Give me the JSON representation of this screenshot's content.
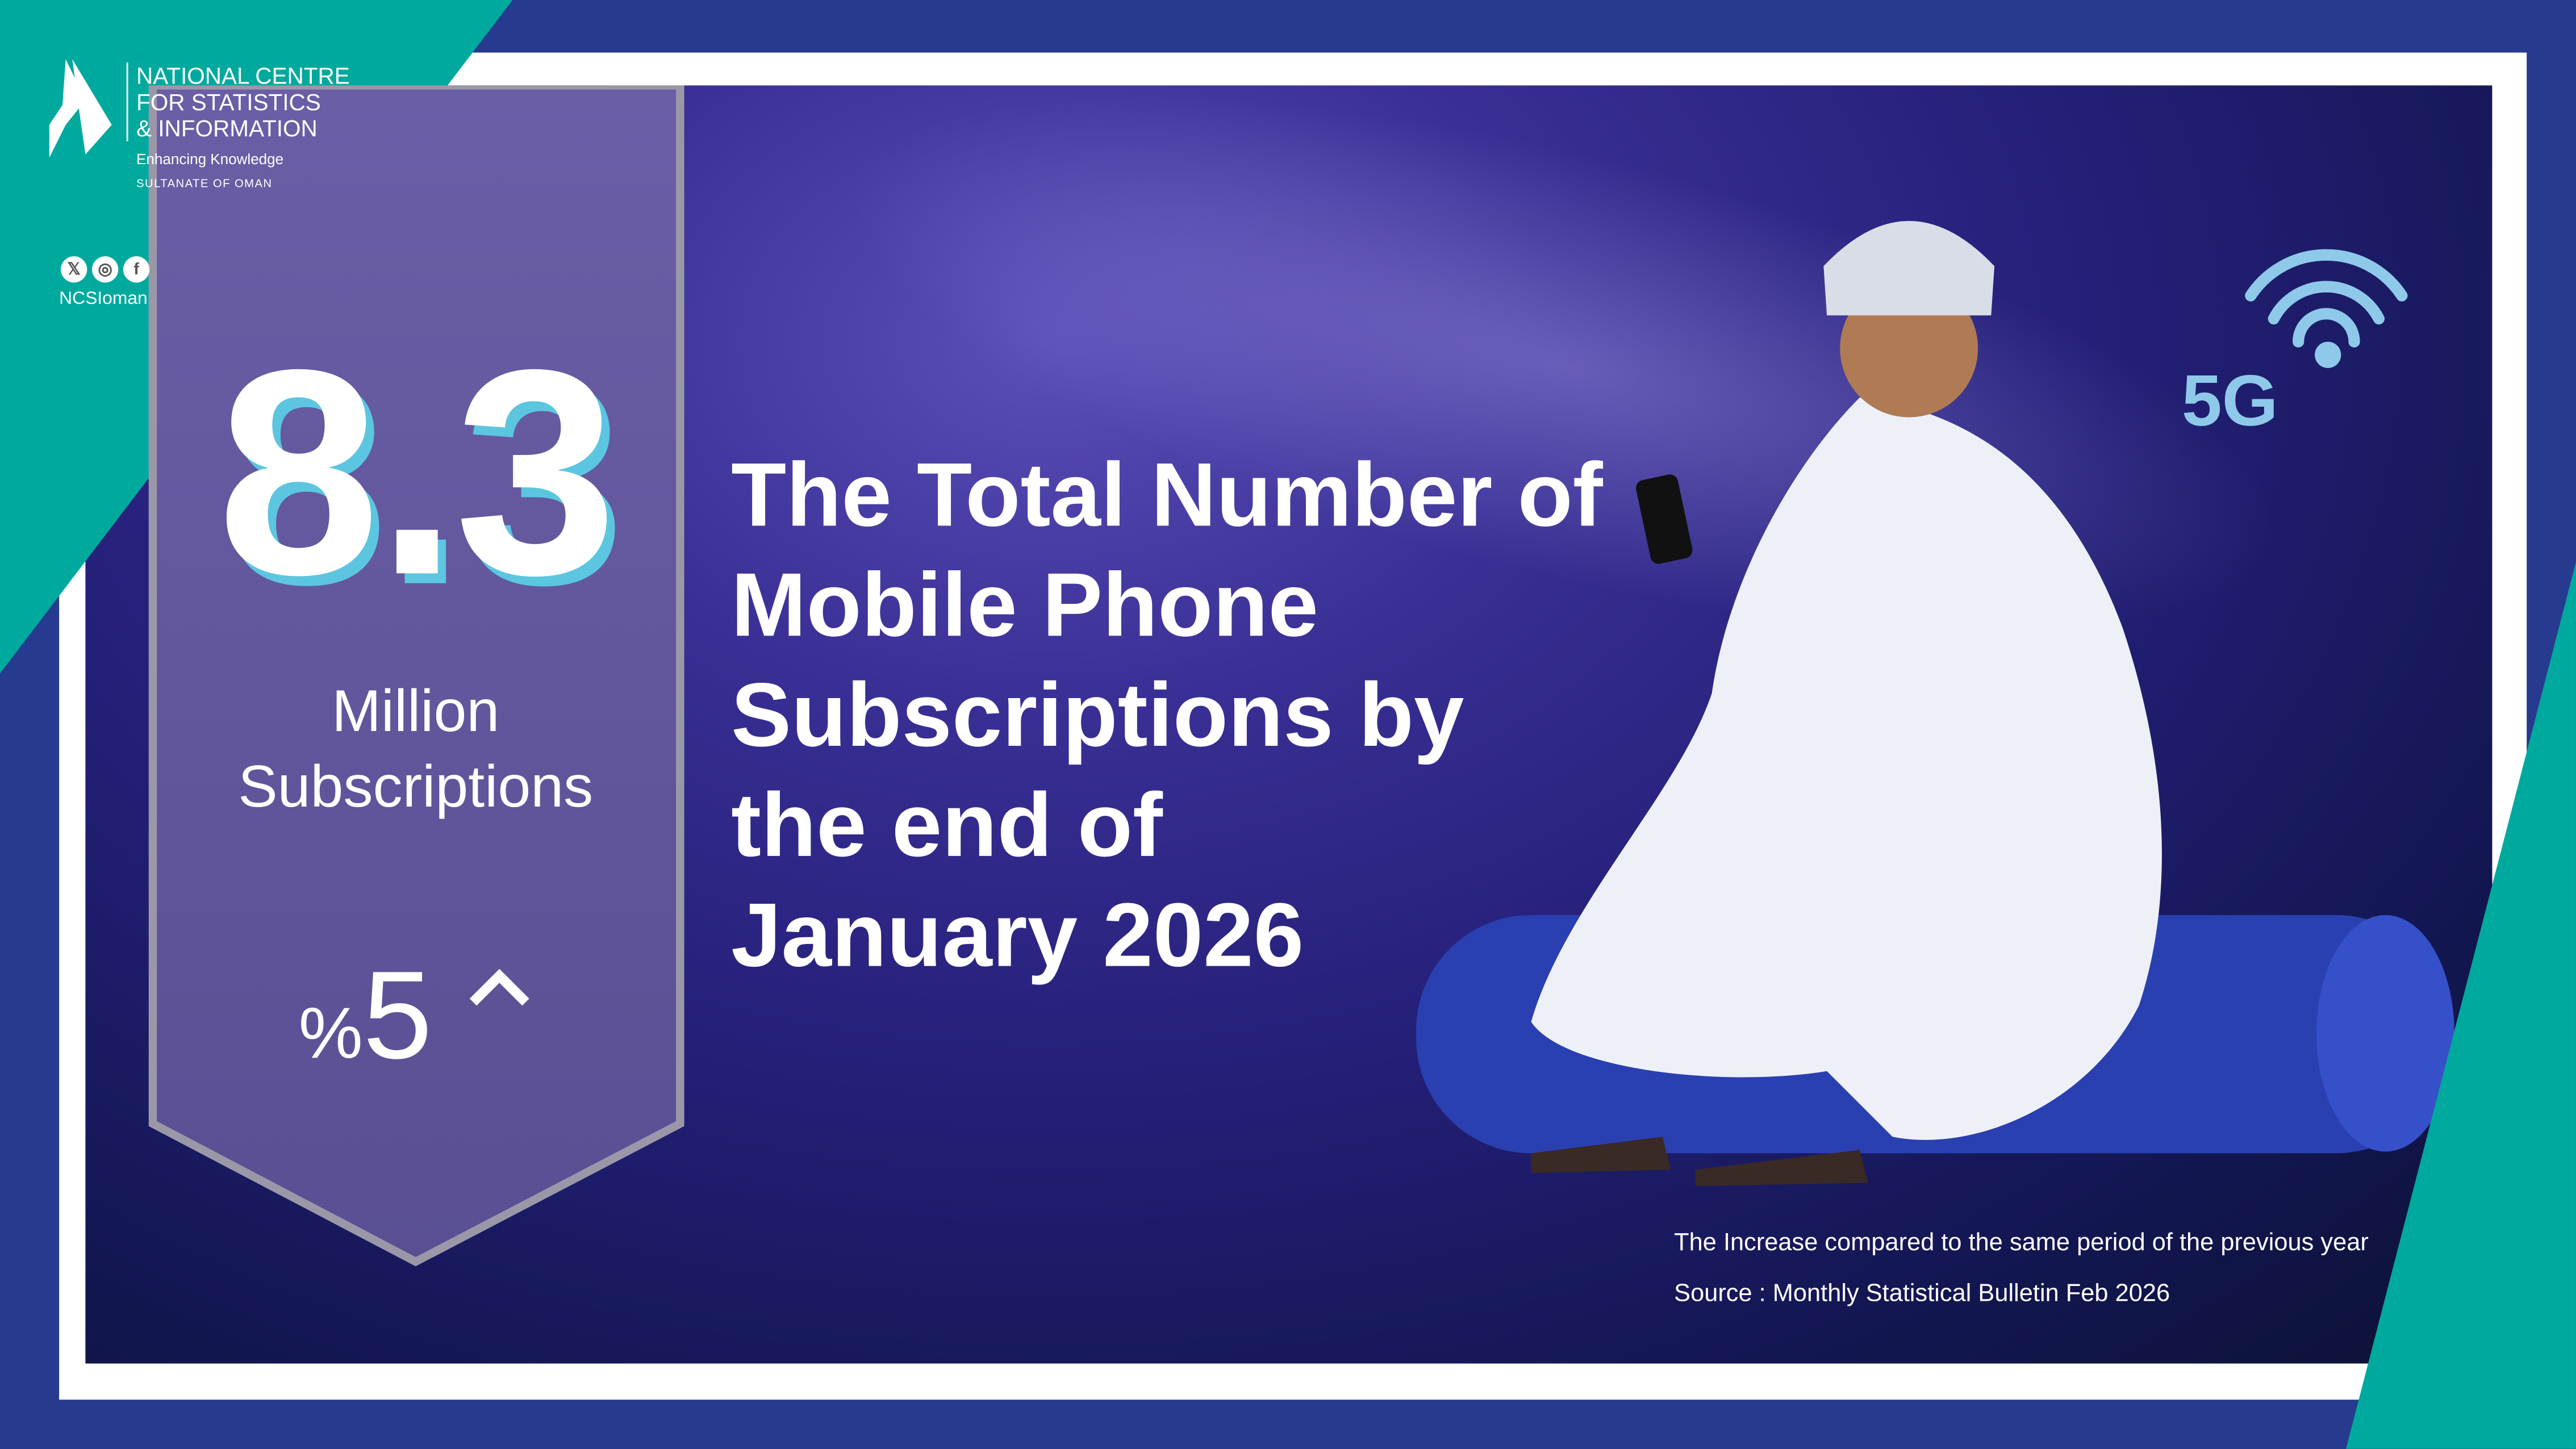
{
  "organization": {
    "name_lines": [
      "NATIONAL CENTRE",
      "FOR STATISTICS",
      "& INFORMATION"
    ],
    "tagline": "Enhancing Knowledge",
    "country": "SULTANATE OF OMAN",
    "social_icons": [
      "x-icon",
      "instagram-icon",
      "facebook-icon"
    ],
    "handle": "NCSIoman"
  },
  "stat": {
    "value": "8.3",
    "unit_lines": [
      "Million",
      "Subscriptions"
    ],
    "change_percent_sign": "%",
    "change_value": "5",
    "change_direction": "up"
  },
  "headline_lines": [
    "The Total Number of",
    "Mobile Phone",
    "Subscriptions by",
    "the end of",
    "January 2026"
  ],
  "illustration": {
    "badge": "5G"
  },
  "footer": {
    "note": "The Increase compared to the same period of the previous year",
    "source": "Source : Monthly Statistical Bulletin Feb 2026"
  },
  "colors": {
    "teal": "#00a99d",
    "navy": "#263b8f",
    "purple": "#63589a",
    "cyan_shadow": "#5cc6e0"
  }
}
